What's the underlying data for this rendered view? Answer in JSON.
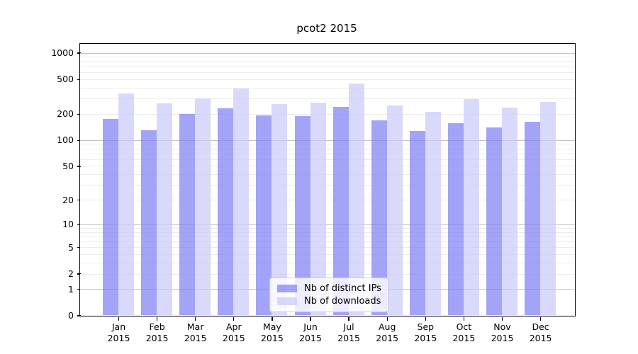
{
  "chart_data": {
    "type": "bar",
    "title": "pcot2 2015",
    "categories": [
      "Jan",
      "Feb",
      "Mar",
      "Apr",
      "May",
      "Jun",
      "Jul",
      "Aug",
      "Sep",
      "Oct",
      "Nov",
      "Dec"
    ],
    "category_year": "2015",
    "series": [
      {
        "name": "Nb of distinct IPs",
        "color": "#8080f5",
        "values": [
          174,
          129,
          199,
          233,
          193,
          188,
          238,
          168,
          126,
          156,
          140,
          161
        ]
      },
      {
        "name": "Nb of downloads",
        "color": "#cbcbf9",
        "values": [
          343,
          264,
          299,
          390,
          259,
          267,
          443,
          249,
          209,
          296,
          234,
          273
        ]
      }
    ],
    "bar_opacity": 0.72,
    "y_scale": "log1p",
    "y_ticks": [
      0,
      1,
      2,
      5,
      10,
      20,
      50,
      100,
      200,
      500,
      1000
    ],
    "ylim": [
      0,
      1275
    ],
    "grid": true,
    "minor_grid_color": "#ececec",
    "major_grid_color": "#c3c3c3",
    "frame_color": "#000000",
    "legend_position": "lower center",
    "legend": [
      "Nb of distinct IPs",
      "Nb of downloads"
    ]
  }
}
